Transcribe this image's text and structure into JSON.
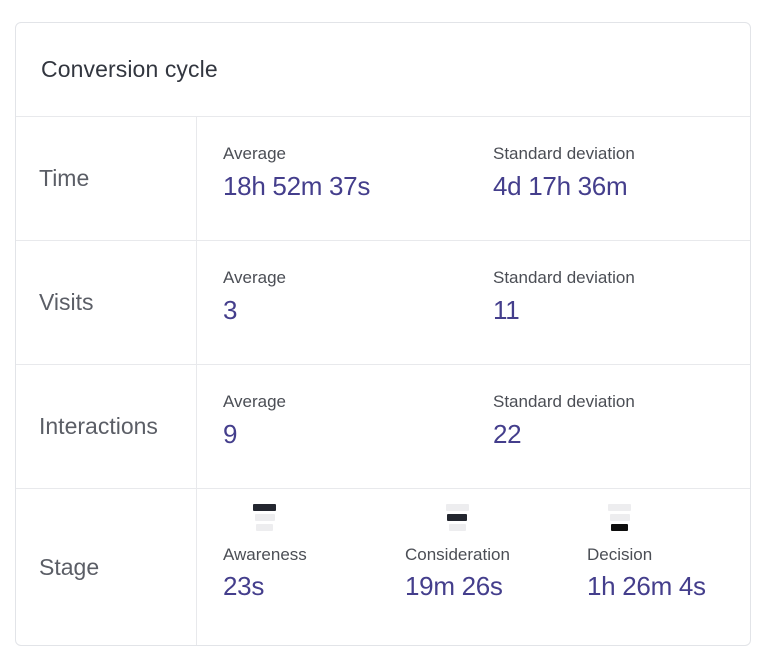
{
  "title": "Conversion cycle",
  "colors": {
    "value_text": "#443e8c",
    "small_label_text": "#4b4e55",
    "row_label_text": "#5b5e66",
    "title_text": "#32363f",
    "border": "#e2e4e8",
    "funnel_active_bar": "#23262f",
    "funnel_inactive_bar": "#ededef"
  },
  "rows": [
    {
      "label": "Time",
      "metrics": [
        {
          "label": "Average",
          "value": "18h 52m 37s"
        },
        {
          "label": "Standard deviation",
          "value": "4d 17h 36m"
        }
      ]
    },
    {
      "label": "Visits",
      "metrics": [
        {
          "label": "Average",
          "value": "3"
        },
        {
          "label": "Standard deviation",
          "value": "11"
        }
      ]
    },
    {
      "label": "Interactions",
      "metrics": [
        {
          "label": "Average",
          "value": "9"
        },
        {
          "label": "Standard deviation",
          "value": "22"
        }
      ]
    },
    {
      "label": "Stage",
      "stages": [
        {
          "label": "Awareness",
          "value": "23s",
          "icon": "funnel-top-highlighted-icon"
        },
        {
          "label": "Consideration",
          "value": "19m 26s",
          "icon": "funnel-middle-highlighted-icon"
        },
        {
          "label": "Decision",
          "value": "1h 26m 4s",
          "icon": "funnel-bottom-highlighted-icon"
        }
      ]
    }
  ]
}
